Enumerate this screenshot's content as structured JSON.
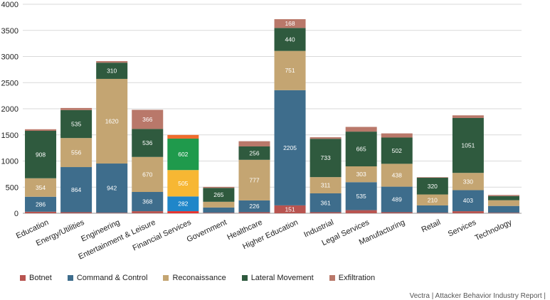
{
  "chart_data": {
    "type": "bar",
    "stacked": true,
    "categories": [
      "Education",
      "Energy/Utilities",
      "Engineering",
      "Entertainment & Leisure",
      "Financial Services",
      "Government",
      "Healthcare",
      "Higher Education",
      "Industrial",
      "Legal Services",
      "Manufacturing",
      "Retail",
      "Services",
      "Technology"
    ],
    "series": [
      {
        "name": "Botnet",
        "color": "#b85450",
        "values": [
          30,
          20,
          10,
          40,
          40,
          10,
          20,
          151,
          20,
          60,
          20,
          10,
          40,
          10
        ],
        "labels": [
          "",
          "",
          "",
          "",
          "",
          "",
          "",
          "151",
          "",
          "",
          "",
          "",
          "",
          ""
        ]
      },
      {
        "name": "Command & Control",
        "color": "#3e6d8c",
        "values": [
          286,
          864,
          942,
          368,
          282,
          100,
          226,
          2205,
          361,
          535,
          489,
          140,
          403,
          130
        ],
        "labels": [
          "286",
          "864",
          "942",
          "368",
          "282",
          "",
          "226",
          "2205",
          "361",
          "535",
          "489",
          "",
          "403",
          ""
        ]
      },
      {
        "name": "Reconaissance",
        "color": "#c4a572",
        "values": [
          354,
          556,
          1620,
          670,
          505,
          110,
          777,
          751,
          311,
          303,
          438,
          210,
          330,
          110
        ],
        "labels": [
          "354",
          "556",
          "1620",
          "670",
          "505",
          "",
          "777",
          "751",
          "311",
          "303",
          "438",
          "210",
          "330",
          ""
        ]
      },
      {
        "name": "Lateral Movement",
        "color": "#2f5a3e",
        "values": [
          908,
          535,
          310,
          536,
          602,
          265,
          256,
          440,
          733,
          665,
          502,
          320,
          1051,
          80
        ],
        "labels": [
          "908",
          "535",
          "310",
          "536",
          "602",
          "265",
          "256",
          "440",
          "733",
          "665",
          "502",
          "320",
          "1051",
          ""
        ]
      },
      {
        "name": "Exfiltration",
        "color": "#b9786a",
        "values": [
          30,
          40,
          30,
          366,
          70,
          20,
          100,
          168,
          30,
          90,
          80,
          10,
          50,
          20
        ],
        "labels": [
          "",
          "",
          "",
          "366",
          "",
          "",
          "",
          "168",
          "",
          "",
          "",
          "",
          "",
          ""
        ]
      }
    ],
    "highlight_category": "Financial Services",
    "highlight_colors": [
      "#e8322d",
      "#1f86c9",
      "#f7b733",
      "#1f9a4c",
      "#ef6c2d"
    ],
    "ylim": [
      0,
      4000
    ],
    "yticks": [
      0,
      500,
      1000,
      1500,
      2000,
      2500,
      3000,
      3500,
      4000
    ],
    "grid": true,
    "legend_position": "bottom-left"
  },
  "footer_text": "Vectra | Attacker Behavior Industry Report |"
}
